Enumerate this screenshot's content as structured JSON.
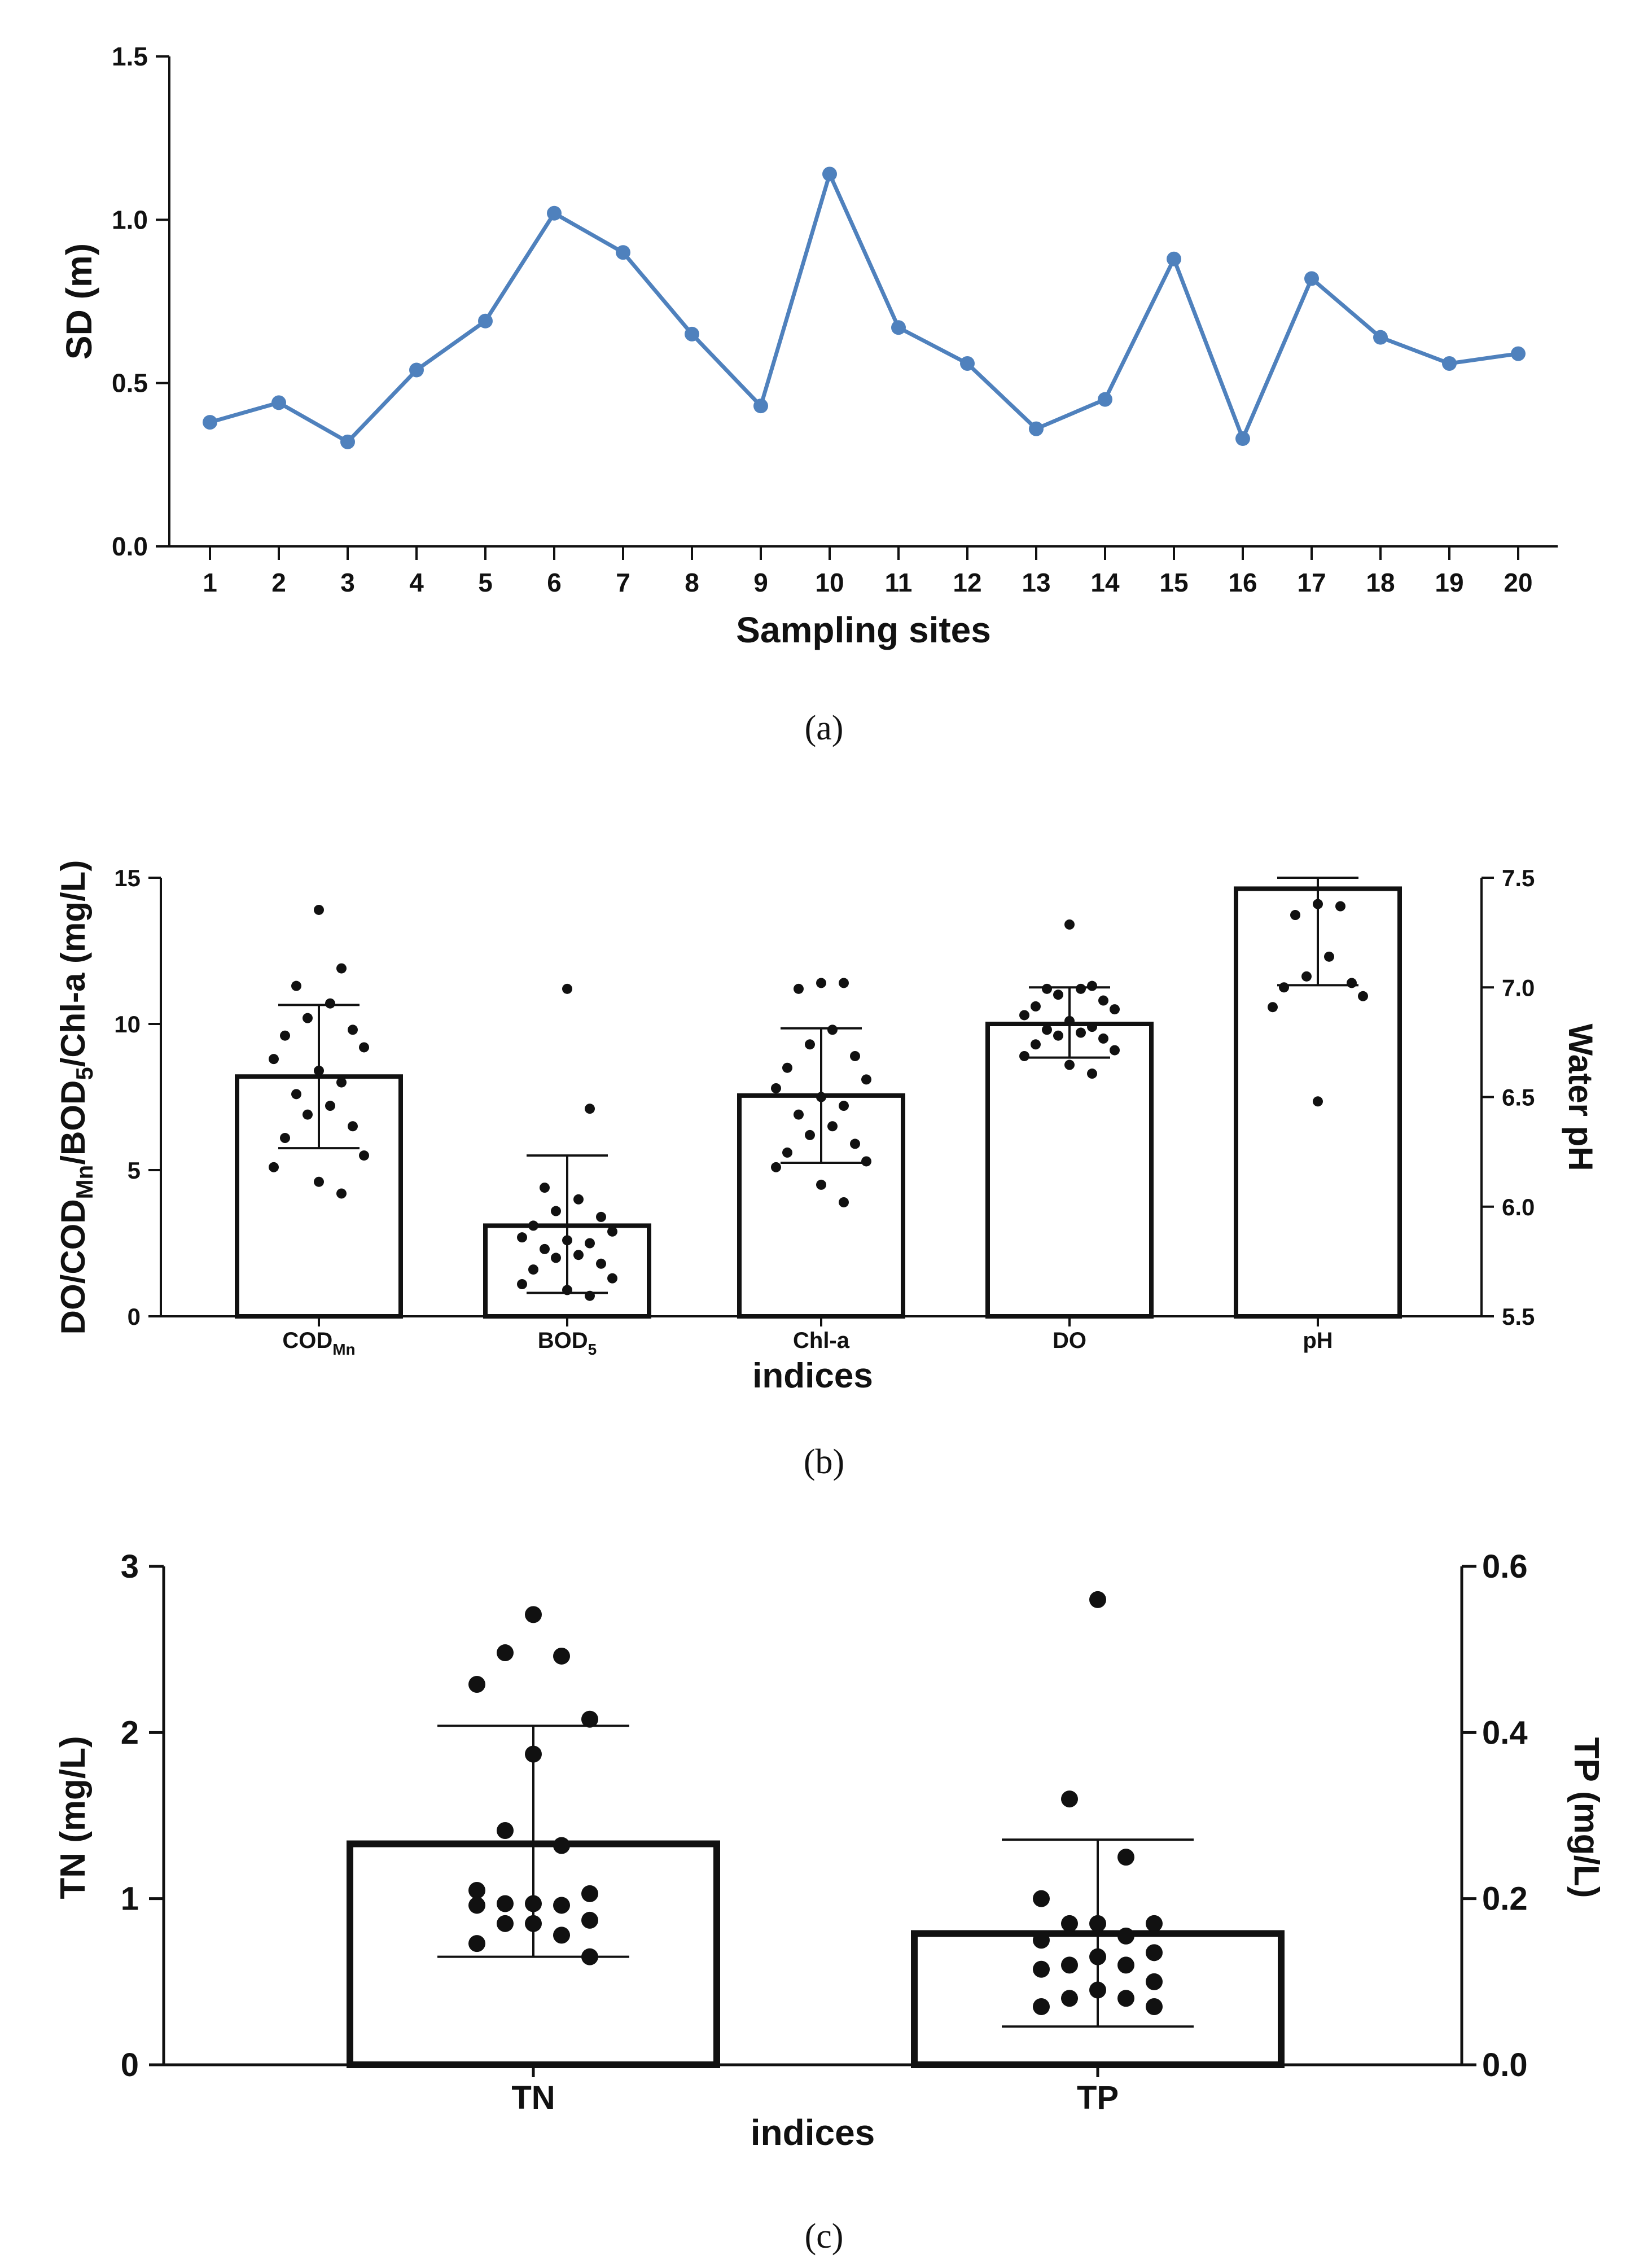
{
  "captions": [
    "(a)",
    "(b)",
    "(c)"
  ],
  "chart_data": [
    {
      "type": "line",
      "panel": "a",
      "xlabel": "Sampling sites",
      "ylabel": "SD (m)",
      "x": [
        1,
        2,
        3,
        4,
        5,
        6,
        7,
        8,
        9,
        10,
        11,
        12,
        13,
        14,
        15,
        16,
        17,
        18,
        19,
        20
      ],
      "x_tick_labels": [
        "1",
        "2",
        "3",
        "4",
        "5",
        "6",
        "7",
        "8",
        "9",
        "10",
        "11",
        "12",
        "13",
        "14",
        "15",
        "16",
        "17",
        "18",
        "19",
        "20"
      ],
      "y_tick_labels": [
        "0.0",
        "0.5",
        "1.0",
        "1.5"
      ],
      "y_ticks": [
        0,
        0.5,
        1.0,
        1.5
      ],
      "ylim": [
        0,
        1.5
      ],
      "series": [
        {
          "name": "SD",
          "color": "#4F81BD",
          "values": [
            0.38,
            0.44,
            0.32,
            0.54,
            0.69,
            1.02,
            0.9,
            0.65,
            0.43,
            1.14,
            0.67,
            0.56,
            0.36,
            0.45,
            0.88,
            0.33,
            0.82,
            0.64,
            0.56,
            0.59
          ]
        }
      ]
    },
    {
      "type": "bar",
      "panel": "b",
      "xlabel": "indices",
      "ylabel_parts": [
        "DO/COD",
        "Mn",
        "/BOD",
        "5",
        "/Chl-a (mg/L)"
      ],
      "y2label": "Water pH",
      "category_labels": [
        {
          "main": "COD",
          "sub": "Mn"
        },
        {
          "main": "BOD",
          "sub": "5"
        },
        {
          "main": "Chl-a",
          "sub": ""
        },
        {
          "main": "DO",
          "sub": ""
        },
        {
          "main": "pH",
          "sub": ""
        }
      ],
      "y_tick_labels": [
        "0",
        "5",
        "10",
        "15"
      ],
      "y_ticks": [
        0,
        5,
        10,
        15
      ],
      "ylim": [
        0,
        15
      ],
      "y2_tick_labels": [
        "5.5",
        "6.0",
        "6.5",
        "7.0",
        "7.5"
      ],
      "y2_ticks": [
        5.5,
        6.0,
        6.5,
        7.0,
        7.5
      ],
      "y2lim": [
        5.5,
        7.5
      ],
      "bars": [
        {
          "category": "CODMn",
          "axis": "left",
          "mean": 8.2,
          "sd_low": 5.75,
          "sd_high": 10.65,
          "points": [
            13.9,
            11.9,
            11.3,
            10.7,
            10.2,
            9.8,
            9.6,
            9.2,
            8.8,
            8.4,
            8.0,
            7.6,
            7.2,
            6.9,
            6.5,
            6.1,
            5.5,
            5.1,
            4.6,
            4.2
          ]
        },
        {
          "category": "BOD5",
          "axis": "left",
          "mean": 3.1,
          "sd_low": 0.8,
          "sd_high": 5.5,
          "points": [
            11.2,
            7.1,
            4.4,
            4.0,
            3.6,
            3.4,
            3.1,
            2.9,
            2.7,
            2.6,
            2.5,
            2.3,
            2.1,
            2.0,
            1.8,
            1.6,
            1.3,
            1.1,
            0.9,
            0.7
          ]
        },
        {
          "category": "Chl-a",
          "axis": "left",
          "mean": 7.55,
          "sd_low": 5.25,
          "sd_high": 9.85,
          "points": [
            11.4,
            11.4,
            11.2,
            9.8,
            9.3,
            8.9,
            8.5,
            8.1,
            7.8,
            7.5,
            7.2,
            6.9,
            6.5,
            6.2,
            5.9,
            5.6,
            5.3,
            5.1,
            4.5,
            3.9
          ]
        },
        {
          "category": "DO",
          "axis": "left",
          "mean": 10.0,
          "sd_low": 8.85,
          "sd_high": 11.25,
          "points": [
            13.4,
            11.3,
            11.2,
            11.2,
            11.0,
            10.8,
            10.6,
            10.5,
            10.3,
            10.1,
            9.9,
            9.8,
            9.7,
            9.6,
            9.5,
            9.3,
            9.1,
            8.9,
            8.6,
            8.3
          ]
        },
        {
          "category": "pH",
          "axis": "right",
          "mean": 7.45,
          "sd_low": 7.01,
          "sd_high": 7.5,
          "points": [
            7.38,
            7.37,
            7.33,
            7.14,
            7.05,
            7.02,
            7.0,
            6.96,
            6.91,
            6.48
          ]
        }
      ]
    },
    {
      "type": "bar",
      "panel": "c",
      "xlabel": "indices",
      "ylabel": "TN (mg/L)",
      "y2label": "TP (mg/L)",
      "categories": [
        "TN",
        "TP"
      ],
      "y_tick_labels": [
        "0",
        "1",
        "2",
        "3"
      ],
      "y_ticks": [
        0,
        1,
        2,
        3
      ],
      "ylim": [
        0,
        3
      ],
      "y2_tick_labels": [
        "0.0",
        "0.2",
        "0.4",
        "0.6"
      ],
      "y2_ticks": [
        0,
        0.2,
        0.4,
        0.6
      ],
      "y2lim": [
        0,
        0.6
      ],
      "bars": [
        {
          "category": "TN",
          "axis": "left",
          "mean": 1.33,
          "sd_low": 0.65,
          "sd_high": 2.04,
          "points": [
            2.71,
            2.48,
            2.46,
            2.29,
            2.08,
            1.87,
            1.41,
            1.32,
            1.05,
            1.03,
            0.97,
            0.97,
            0.96,
            0.96,
            0.87,
            0.85,
            0.85,
            0.78,
            0.73,
            0.65
          ]
        },
        {
          "category": "TP",
          "axis": "right",
          "mean": 0.158,
          "sd_low": 0.046,
          "sd_high": 0.271,
          "points": [
            0.56,
            0.32,
            0.25,
            0.2,
            0.17,
            0.17,
            0.17,
            0.155,
            0.15,
            0.135,
            0.13,
            0.12,
            0.12,
            0.115,
            0.1,
            0.09,
            0.08,
            0.08,
            0.07,
            0.07
          ]
        }
      ]
    }
  ]
}
